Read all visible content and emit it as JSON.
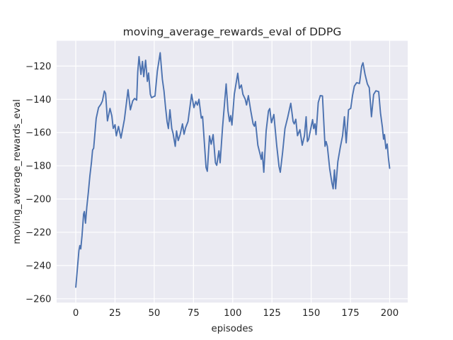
{
  "chart_data": {
    "type": "line",
    "title": "moving_average_rewards_eval of DDPG",
    "xlabel": "episodes",
    "ylabel": "moving_average_rewards_eval",
    "xticks": [
      0,
      25,
      50,
      75,
      100,
      125,
      150,
      175,
      200
    ],
    "yticks": [
      -120,
      -140,
      -160,
      -180,
      -200,
      -220,
      -240,
      -260
    ],
    "xlim": [
      -12.2,
      211.5
    ],
    "ylim": [
      -262.3,
      -104.8
    ],
    "grid": true,
    "legend": "none",
    "style": "seaborn-darkgrid",
    "colors": {
      "line": "#4C72B0",
      "plot_background": "#EAEAF2",
      "figure_background": "#FFFFFF",
      "grid": "#FFFFFF",
      "text": "#262626"
    },
    "series": [
      {
        "name": "moving_average_rewards_eval",
        "points": [
          [
            0,
            -253
          ],
          [
            1,
            -242
          ],
          [
            2,
            -231
          ],
          [
            2.6,
            -228
          ],
          [
            3.2,
            -230
          ],
          [
            4,
            -222
          ],
          [
            5,
            -209
          ],
          [
            5.5,
            -207.5
          ],
          [
            6.2,
            -214.5
          ],
          [
            7,
            -205
          ],
          [
            8,
            -196
          ],
          [
            9,
            -186
          ],
          [
            10,
            -178
          ],
          [
            10.7,
            -170.5
          ],
          [
            11.4,
            -169.5
          ],
          [
            13,
            -151.5
          ],
          [
            14.5,
            -145
          ],
          [
            16,
            -143
          ],
          [
            17,
            -141
          ],
          [
            18.2,
            -135
          ],
          [
            19,
            -136.5
          ],
          [
            20.2,
            -153
          ],
          [
            21.8,
            -145.5
          ],
          [
            23,
            -150
          ],
          [
            23.9,
            -157.5
          ],
          [
            25,
            -155.3
          ],
          [
            25.8,
            -162
          ],
          [
            27.2,
            -156.3
          ],
          [
            28.8,
            -163.3
          ],
          [
            31,
            -152
          ],
          [
            32.5,
            -140.5
          ],
          [
            33.3,
            -134.2
          ],
          [
            34.8,
            -146.3
          ],
          [
            36.3,
            -141
          ],
          [
            37.5,
            -139.5
          ],
          [
            38.8,
            -140.5
          ],
          [
            39.5,
            -123.6
          ],
          [
            40.3,
            -114.3
          ],
          [
            41.5,
            -125
          ],
          [
            42.5,
            -117.2
          ],
          [
            43.3,
            -126.4
          ],
          [
            44.5,
            -116.5
          ],
          [
            45.6,
            -129.2
          ],
          [
            46.4,
            -124.2
          ],
          [
            47.5,
            -137
          ],
          [
            48.3,
            -139
          ],
          [
            50.5,
            -138
          ],
          [
            52,
            -123
          ],
          [
            53.8,
            -112
          ],
          [
            55.2,
            -128
          ],
          [
            56.2,
            -135
          ],
          [
            57.2,
            -145
          ],
          [
            58.2,
            -153.5
          ],
          [
            59,
            -157.6
          ],
          [
            60,
            -146.3
          ],
          [
            61.2,
            -157.6
          ],
          [
            62,
            -160.5
          ],
          [
            63.4,
            -168.3
          ],
          [
            64.2,
            -159
          ],
          [
            65.3,
            -164.8
          ],
          [
            66.5,
            -161.2
          ],
          [
            68,
            -154.8
          ],
          [
            69,
            -161
          ],
          [
            70,
            -157
          ],
          [
            71.5,
            -153.4
          ],
          [
            73.8,
            -137
          ],
          [
            75.3,
            -145
          ],
          [
            76.5,
            -141.3
          ],
          [
            77.5,
            -143.5
          ],
          [
            78.5,
            -140
          ],
          [
            80,
            -151.3
          ],
          [
            80.8,
            -150.3
          ],
          [
            83,
            -181
          ],
          [
            83.8,
            -183.3
          ],
          [
            85.2,
            -162
          ],
          [
            86.3,
            -167
          ],
          [
            87.5,
            -161.2
          ],
          [
            89,
            -178.2
          ],
          [
            89.8,
            -179.7
          ],
          [
            91.2,
            -171
          ],
          [
            92,
            -178.2
          ],
          [
            93.5,
            -157
          ],
          [
            95,
            -140
          ],
          [
            95.8,
            -130.7
          ],
          [
            97,
            -147
          ],
          [
            98,
            -153.4
          ],
          [
            98.7,
            -149.8
          ],
          [
            99.5,
            -155.5
          ],
          [
            101,
            -137
          ],
          [
            103.2,
            -124.3
          ],
          [
            104.3,
            -133.5
          ],
          [
            105.5,
            -131.4
          ],
          [
            106.5,
            -137
          ],
          [
            108,
            -140
          ],
          [
            108.8,
            -143.4
          ],
          [
            110,
            -137.8
          ],
          [
            111.5,
            -147
          ],
          [
            113,
            -154.8
          ],
          [
            113.8,
            -156.2
          ],
          [
            114.5,
            -153.4
          ],
          [
            116,
            -167.6
          ],
          [
            117.5,
            -173.3
          ],
          [
            118.2,
            -176.1
          ],
          [
            118.8,
            -171.8
          ],
          [
            119.8,
            -183.9
          ],
          [
            121.3,
            -159.1
          ],
          [
            122.8,
            -147
          ],
          [
            123.6,
            -145.6
          ],
          [
            124.7,
            -154.1
          ],
          [
            126.2,
            -149.1
          ],
          [
            128,
            -167.6
          ],
          [
            129.5,
            -180.4
          ],
          [
            130.3,
            -183.9
          ],
          [
            131.8,
            -171.8
          ],
          [
            133.3,
            -157.6
          ],
          [
            135,
            -151
          ],
          [
            137,
            -142.4
          ],
          [
            138.5,
            -153.4
          ],
          [
            139.2,
            -154.8
          ],
          [
            140.2,
            -152
          ],
          [
            141.3,
            -161.9
          ],
          [
            142.8,
            -158.3
          ],
          [
            144.3,
            -167.6
          ],
          [
            145.7,
            -161.9
          ],
          [
            146.8,
            -150.5
          ],
          [
            147.6,
            -165.4
          ],
          [
            148.4,
            -164
          ],
          [
            150.9,
            -152.2
          ],
          [
            151.6,
            -157.6
          ],
          [
            152.4,
            -154.8
          ],
          [
            153.1,
            -161.2
          ],
          [
            154.5,
            -142
          ],
          [
            155.8,
            -137.8
          ],
          [
            157.2,
            -138
          ],
          [
            158.8,
            -168.3
          ],
          [
            159.5,
            -165.4
          ],
          [
            160.3,
            -168.3
          ],
          [
            161.8,
            -181.8
          ],
          [
            163.2,
            -190.3
          ],
          [
            164,
            -193.8
          ],
          [
            164.8,
            -182.5
          ],
          [
            165.6,
            -193.8
          ],
          [
            167,
            -177.5
          ],
          [
            168.5,
            -169
          ],
          [
            170,
            -161.9
          ],
          [
            171.2,
            -150.5
          ],
          [
            172.3,
            -166.2
          ],
          [
            173.8,
            -146.3
          ],
          [
            175.2,
            -145.5
          ],
          [
            176.3,
            -137.8
          ],
          [
            177.5,
            -132.1
          ],
          [
            179,
            -130
          ],
          [
            180.8,
            -130.5
          ],
          [
            182.2,
            -120
          ],
          [
            183,
            -118
          ],
          [
            184.3,
            -124.9
          ],
          [
            185.8,
            -130.7
          ],
          [
            187,
            -133
          ],
          [
            188.4,
            -150.5
          ],
          [
            189.8,
            -137
          ],
          [
            191.2,
            -134.9
          ],
          [
            193,
            -135.4
          ],
          [
            194.2,
            -148.4
          ],
          [
            195.4,
            -157
          ],
          [
            196.1,
            -164
          ],
          [
            196.7,
            -161.2
          ],
          [
            197.6,
            -169.7
          ],
          [
            198.4,
            -166.9
          ],
          [
            199.2,
            -175
          ],
          [
            200,
            -181.5
          ]
        ]
      }
    ]
  }
}
